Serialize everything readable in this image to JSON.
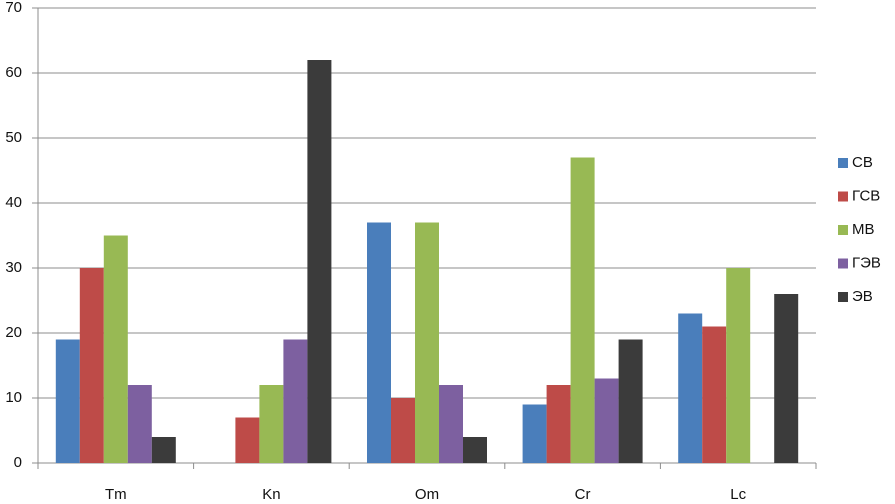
{
  "chart_data": {
    "type": "bar",
    "categories": [
      "Tm",
      "Kn",
      "Om",
      "Cr",
      "Lc"
    ],
    "series": [
      {
        "name": "СВ",
        "color": "#4a7ebb",
        "values": [
          19,
          null,
          37,
          9,
          23
        ]
      },
      {
        "name": "ГСВ",
        "color": "#be4b48",
        "values": [
          30,
          7,
          10,
          12,
          21
        ]
      },
      {
        "name": "МВ",
        "color": "#98b954",
        "values": [
          35,
          12,
          37,
          47,
          30
        ]
      },
      {
        "name": "ГЭВ",
        "color": "#7d60a0",
        "values": [
          12,
          19,
          12,
          13,
          null
        ]
      },
      {
        "name": "ЭВ",
        "color": "#3b3b3b",
        "values": [
          4,
          62,
          4,
          19,
          26
        ]
      }
    ],
    "ylim": [
      0,
      70
    ],
    "yticks": [
      0,
      10,
      20,
      30,
      40,
      50,
      60,
      70
    ],
    "grid": true,
    "legend": "right"
  }
}
